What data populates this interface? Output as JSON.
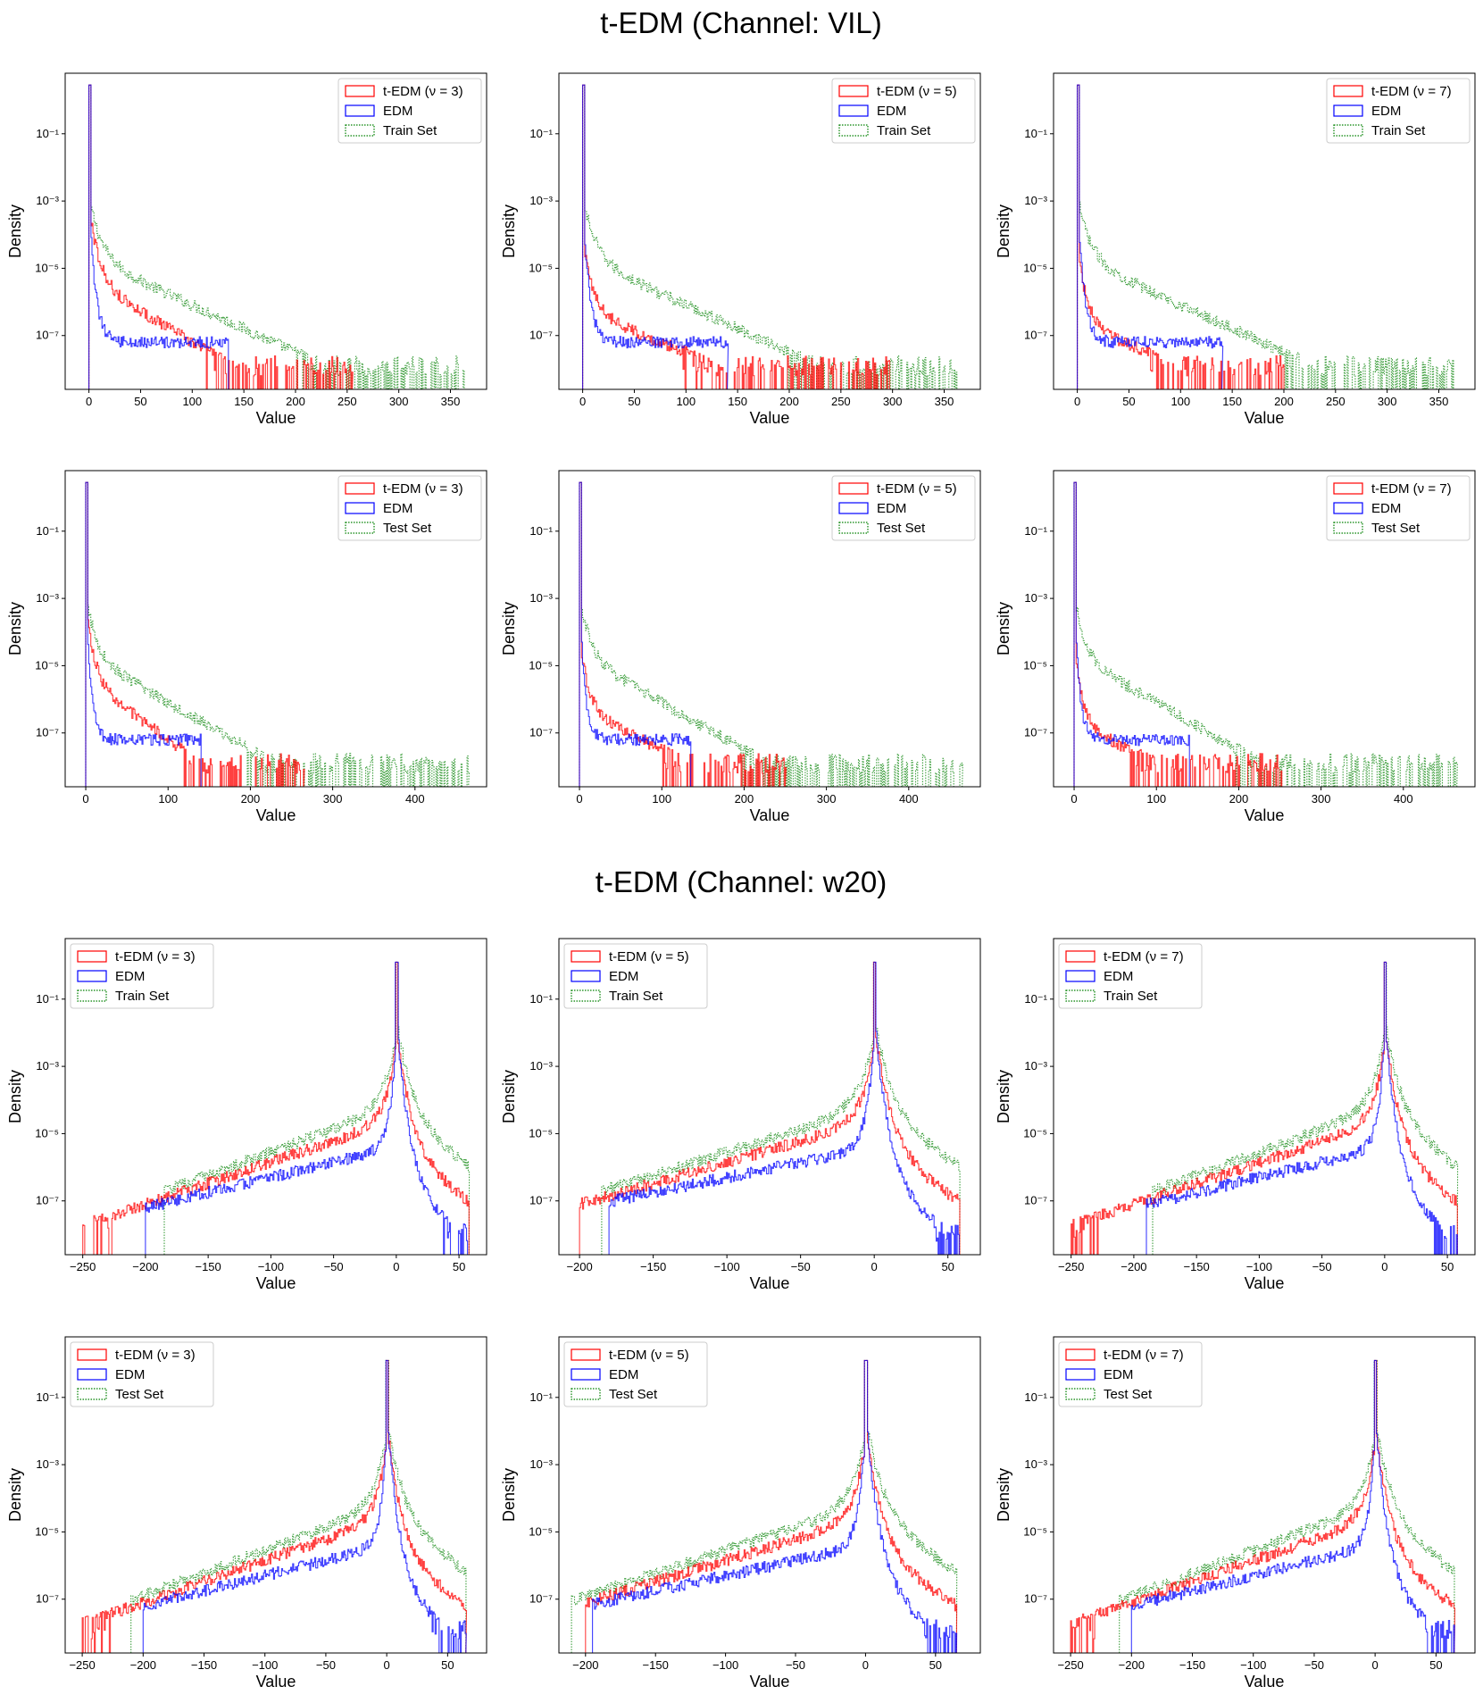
{
  "sections": [
    {
      "title": "t-EDM (Channel: VIL)",
      "channel": "VIL"
    },
    {
      "title": "t-EDM (Channel: w20)",
      "channel": "w20"
    }
  ],
  "colors": {
    "tedm": "#ff0000",
    "edm": "#0000ff",
    "data": "#008000"
  },
  "common": {
    "xlabel": "Value",
    "ylabel": "Density",
    "yscale": "log",
    "ylim_log10": [
      -8.6,
      0.8
    ],
    "yticks": [
      {
        "exp": -1,
        "label": "10⁻¹"
      },
      {
        "exp": -3,
        "label": "10⁻³"
      },
      {
        "exp": -5,
        "label": "10⁻⁵"
      },
      {
        "exp": -7,
        "label": "10⁻⁷"
      }
    ]
  },
  "chart_data": [
    {
      "type": "histogram",
      "section": 0,
      "row": 0,
      "col": 0,
      "shape": "right",
      "nu": 3,
      "ref": "Train Set",
      "legend": [
        "t-EDM (ν = 3)",
        "EDM",
        "Train Set"
      ],
      "legend_loc": "upper right",
      "xlim": [
        -23,
        385
      ],
      "xticks": [
        0,
        50,
        100,
        150,
        200,
        250,
        300,
        350
      ],
      "tedm_decay_log10": [
        -3.9,
        -6.0,
        -6.8,
        -7.6,
        -8.2
      ],
      "edm_max": 135,
      "tedm_max": 255,
      "ref_max": 365,
      "ref_decay_log10": [
        -3.6,
        -5.4,
        -6.5,
        -7.5,
        -8.2
      ]
    },
    {
      "type": "histogram",
      "section": 0,
      "row": 0,
      "col": 1,
      "shape": "right",
      "nu": 5,
      "ref": "Train Set",
      "legend": [
        "t-EDM (ν = 5)",
        "EDM",
        "Train Set"
      ],
      "legend_loc": "upper right",
      "xlim": [
        -23,
        385
      ],
      "xticks": [
        0,
        50,
        100,
        150,
        200,
        250,
        300,
        350
      ],
      "tedm_max": 300,
      "edm_max": 140,
      "ref_max": 365
    },
    {
      "type": "histogram",
      "section": 0,
      "row": 0,
      "col": 2,
      "shape": "right",
      "nu": 7,
      "ref": "Train Set",
      "legend": [
        "t-EDM (ν = 7)",
        "EDM",
        "Train Set"
      ],
      "legend_loc": "upper right",
      "xlim": [
        -23,
        385
      ],
      "xticks": [
        0,
        50,
        100,
        150,
        200,
        250,
        300,
        350
      ],
      "tedm_max": 200,
      "edm_max": 140,
      "ref_max": 365
    },
    {
      "type": "histogram",
      "section": 0,
      "row": 1,
      "col": 0,
      "shape": "right",
      "nu": 3,
      "ref": "Test Set",
      "legend": [
        "t-EDM (ν = 3)",
        "EDM",
        "Test Set"
      ],
      "legend_loc": "upper right",
      "xlim": [
        -25,
        487
      ],
      "xticks": [
        0,
        100,
        200,
        300,
        400
      ],
      "tedm_max": 265,
      "edm_max": 140,
      "ref_max": 465
    },
    {
      "type": "histogram",
      "section": 0,
      "row": 1,
      "col": 1,
      "shape": "right",
      "nu": 5,
      "ref": "Test Set",
      "legend": [
        "t-EDM (ν = 5)",
        "EDM",
        "Test Set"
      ],
      "legend_loc": "upper right",
      "xlim": [
        -25,
        487
      ],
      "xticks": [
        0,
        100,
        200,
        300,
        400
      ],
      "tedm_max": 250,
      "edm_max": 135,
      "ref_max": 465
    },
    {
      "type": "histogram",
      "section": 0,
      "row": 1,
      "col": 2,
      "shape": "right",
      "nu": 7,
      "ref": "Test Set",
      "legend": [
        "t-EDM (ν = 7)",
        "EDM",
        "Test Set"
      ],
      "legend_loc": "upper right",
      "xlim": [
        -25,
        487
      ],
      "xticks": [
        0,
        100,
        200,
        300,
        400
      ],
      "tedm_max": 255,
      "edm_max": 140,
      "ref_max": 465
    },
    {
      "type": "histogram",
      "section": 1,
      "row": 0,
      "col": 0,
      "shape": "left",
      "nu": 3,
      "ref": "Train Set",
      "legend": [
        "t-EDM (ν = 3)",
        "EDM",
        "Train Set"
      ],
      "legend_loc": "upper left",
      "xlim": [
        -264,
        72
      ],
      "xticks": [
        -250,
        -200,
        -150,
        -100,
        -50,
        0,
        50
      ],
      "tedm_min": -250,
      "edm_min": -200,
      "ref_min": -185,
      "pos_max": 58
    },
    {
      "type": "histogram",
      "section": 1,
      "row": 0,
      "col": 1,
      "shape": "left",
      "nu": 5,
      "ref": "Train Set",
      "legend": [
        "t-EDM (ν = 5)",
        "EDM",
        "Train Set"
      ],
      "legend_loc": "upper left",
      "xlim": [
        -214,
        72
      ],
      "xticks": [
        -200,
        -150,
        -100,
        -50,
        0,
        50
      ],
      "tedm_min": -200,
      "edm_min": -180,
      "ref_min": -185,
      "pos_max": 58
    },
    {
      "type": "histogram",
      "section": 1,
      "row": 0,
      "col": 2,
      "shape": "left",
      "nu": 7,
      "ref": "Train Set",
      "legend": [
        "t-EDM (ν = 7)",
        "EDM",
        "Train Set"
      ],
      "legend_loc": "upper left",
      "xlim": [
        -264,
        72
      ],
      "xticks": [
        -250,
        -200,
        -150,
        -100,
        -50,
        0,
        50
      ],
      "tedm_min": -250,
      "edm_min": -190,
      "ref_min": -185,
      "pos_max": 58
    },
    {
      "type": "histogram",
      "section": 1,
      "row": 1,
      "col": 0,
      "shape": "left",
      "nu": 3,
      "ref": "Test Set",
      "legend": [
        "t-EDM (ν = 3)",
        "EDM",
        "Test Set"
      ],
      "legend_loc": "upper left",
      "xlim": [
        -264,
        82
      ],
      "xticks": [
        -250,
        -200,
        -150,
        -100,
        -50,
        0,
        50
      ],
      "tedm_min": -250,
      "edm_min": -200,
      "ref_min": -210,
      "pos_max": 65
    },
    {
      "type": "histogram",
      "section": 1,
      "row": 1,
      "col": 1,
      "shape": "left",
      "nu": 5,
      "ref": "Test Set",
      "legend": [
        "t-EDM (ν = 5)",
        "EDM",
        "Test Set"
      ],
      "legend_loc": "upper left",
      "xlim": [
        -219,
        82
      ],
      "xticks": [
        -200,
        -150,
        -100,
        -50,
        0,
        50
      ],
      "tedm_min": -200,
      "edm_min": -195,
      "ref_min": -210,
      "pos_max": 65
    },
    {
      "type": "histogram",
      "section": 1,
      "row": 1,
      "col": 2,
      "shape": "left",
      "nu": 7,
      "ref": "Test Set",
      "legend": [
        "t-EDM (ν = 7)",
        "EDM",
        "Test Set"
      ],
      "legend_loc": "upper left",
      "xlim": [
        -264,
        82
      ],
      "xticks": [
        -250,
        -200,
        -150,
        -100,
        -50,
        0,
        50
      ],
      "tedm_min": -250,
      "edm_min": -200,
      "ref_min": -210,
      "pos_max": 65
    }
  ]
}
